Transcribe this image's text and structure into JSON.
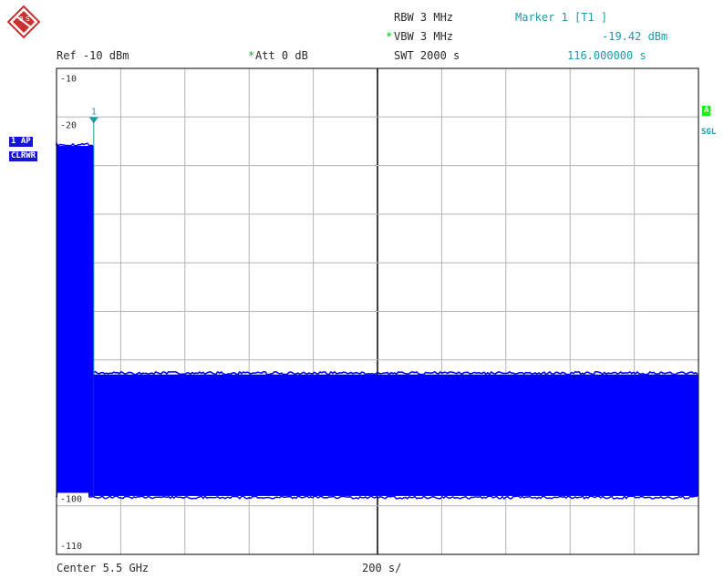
{
  "logo": {
    "text": "R S"
  },
  "header": {
    "ref_label": "Ref -10 dBm",
    "att_star": "*",
    "att_label": "Att  0 dB",
    "rbw_label": "RBW 3 MHz",
    "vbw_star": "*",
    "vbw_label": "VBW 3 MHz",
    "swt_label": "SWT 2000 s"
  },
  "marker": {
    "title": "Marker 1 [T1 ]",
    "level": "-19.42 dBm",
    "time": "116.000000 s",
    "number": "1"
  },
  "left_tags": {
    "trace": "1 AP",
    "mode": "CLRWR"
  },
  "right_tags": {
    "a": "A",
    "sgl": "SGL"
  },
  "footer": {
    "center": "Center 5.5 GHz",
    "span": "200 s/"
  },
  "colors": {
    "trace": "#0000ff",
    "grid": "#b4b4b4",
    "frame": "#000000",
    "marker": "#1c9aa6"
  },
  "chart_data": {
    "type": "area",
    "title": "",
    "xlabel": "",
    "ylabel": "",
    "x_unit": "s",
    "y_unit": "dBm",
    "xlim": [
      0,
      2000
    ],
    "ylim": [
      -112,
      -8
    ],
    "y_ticks": [
      {
        "value": -10,
        "label": "-10"
      },
      {
        "value": -20,
        "label": "-20"
      },
      {
        "value": -100,
        "label": "-100"
      },
      {
        "value": -110,
        "label": "-110"
      }
    ],
    "grid": true,
    "grid_divisions": {
      "x": 10,
      "y": 10
    },
    "series": [
      {
        "segments": [
          {
            "x": [
              0,
              116
            ],
            "upper": -24.6,
            "lower": -99.5
          },
          {
            "x": [
              116,
              2000
            ],
            "upper": -73.5,
            "lower": -99.5
          }
        ]
      }
    ],
    "marker": {
      "x": 116,
      "y": -19.42
    }
  }
}
